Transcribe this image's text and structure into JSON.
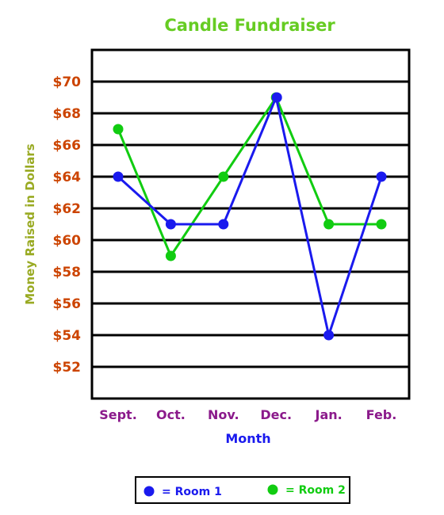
{
  "chart_data": {
    "type": "line",
    "title": "Candle Fundraiser",
    "xlabel": "Month",
    "ylabel": "Money Raised in Dollars",
    "categories": [
      "Sept.",
      "Oct.",
      "Nov.",
      "Dec.",
      "Jan.",
      "Feb."
    ],
    "ylim": [
      50,
      72
    ],
    "yticks": [
      52,
      54,
      56,
      58,
      60,
      62,
      64,
      66,
      68,
      70
    ],
    "ytick_labels": [
      "$52",
      "$54",
      "$56",
      "$58",
      "$60",
      "$62",
      "$64",
      "$66",
      "$68",
      "$70"
    ],
    "grid": true,
    "legend_position": "bottom",
    "series": [
      {
        "name": "= Room 1",
        "color": "#1a1aee",
        "values": [
          64,
          61,
          61,
          69,
          54,
          64
        ]
      },
      {
        "name": "= Room 2",
        "color": "#11cc11",
        "values": [
          67,
          59,
          64,
          69,
          61,
          61
        ]
      }
    ]
  }
}
